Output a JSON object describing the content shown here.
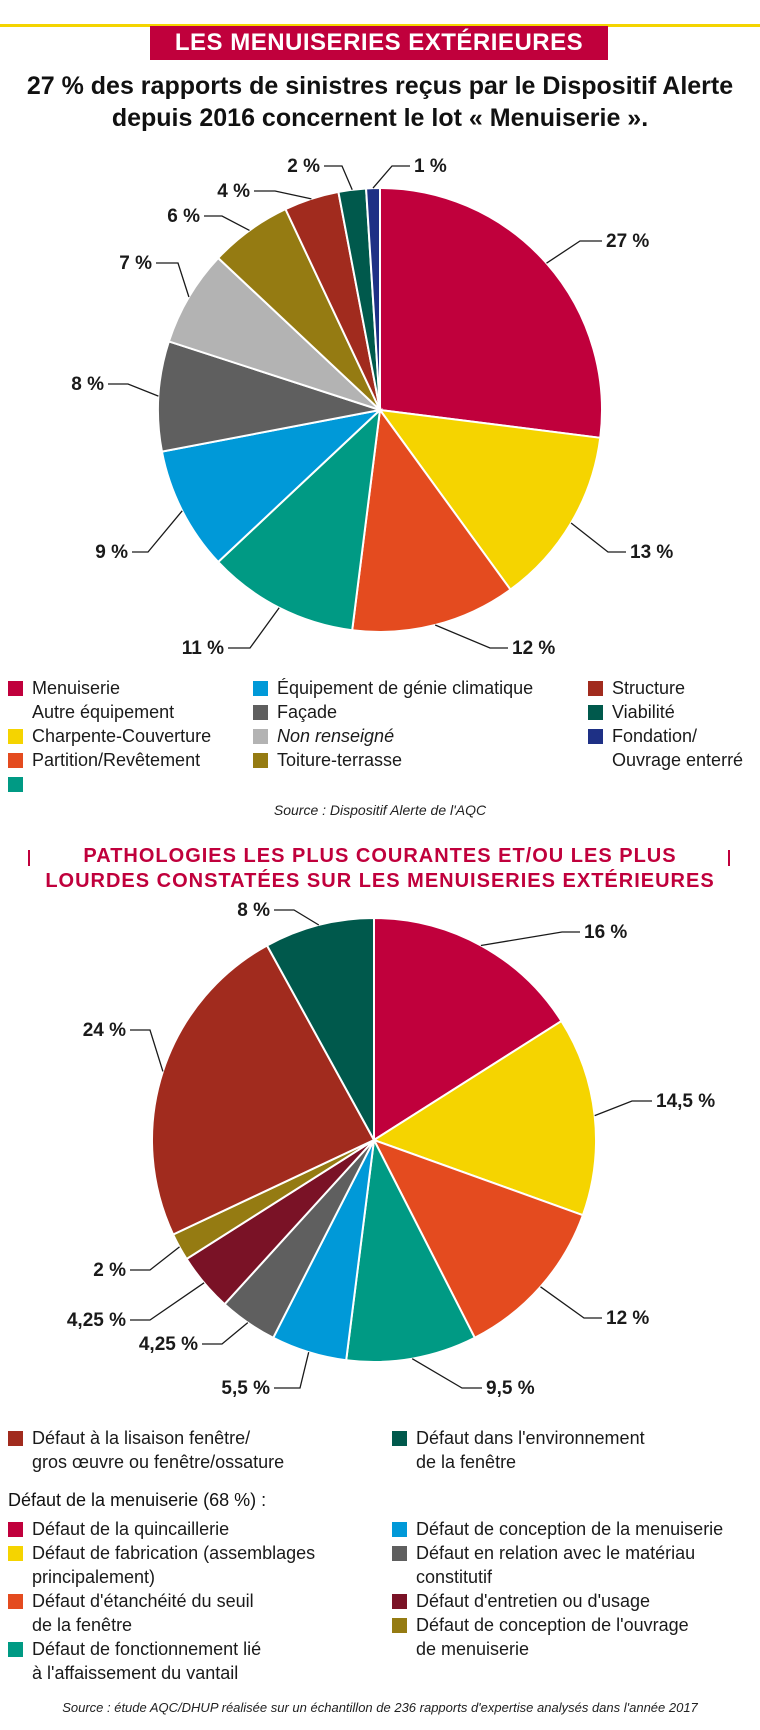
{
  "header": {
    "banner": "LES MENUISERIES EXTÉRIEURES",
    "headline_line1": "27 % des rapports de sinistres reçus par le Dispositif Alerte",
    "headline_line2": "depuis 2016 concernent le lot « Menuiserie »."
  },
  "chart_data": [
    {
      "type": "pie",
      "title": "",
      "slices": [
        {
          "label": "Menuiserie",
          "value": 27,
          "display": "27 %",
          "color": "#c0003c"
        },
        {
          "label": "Charpente-Couverture",
          "value": 13,
          "display": "13 %",
          "color": "#f5d400"
        },
        {
          "label": "Partition/Revêtement",
          "value": 12,
          "display": "12 %",
          "color": "#e44b1f"
        },
        {
          "label": "Autre équipement",
          "value": 11,
          "display": "11 %",
          "color": "#009a84"
        },
        {
          "label": "Équipement de génie climatique",
          "value": 9,
          "display": "9 %",
          "color": "#0099d8"
        },
        {
          "label": "Façade",
          "value": 8,
          "display": "8 %",
          "color": "#5f5f5f"
        },
        {
          "label": "Non renseigné",
          "value": 7,
          "display": "7 %",
          "color": "#b3b3b3"
        },
        {
          "label": "Toiture-terrasse",
          "value": 6,
          "display": "6 %",
          "color": "#957b12"
        },
        {
          "label": "Structure",
          "value": 4,
          "display": "4 %",
          "color": "#a12b1e"
        },
        {
          "label": "Viabilité",
          "value": 2,
          "display": "2 %",
          "color": "#00594c"
        },
        {
          "label": "Fondation/ Ouvrage enterré",
          "value": 1,
          "display": "1 %",
          "color": "#1e3085"
        }
      ],
      "legend_placement": "bottom"
    },
    {
      "type": "pie",
      "title": "PATHOLOGIES LES PLUS COURANTES ET/OU LES PLUS LOURDES CONSTATÉES SUR LES MENUISERIES EXTÉRIEURES",
      "slices": [
        {
          "label": "Défaut de la quincaillerie",
          "value": 16,
          "display": "16 %",
          "color": "#c0003c"
        },
        {
          "label": "Défaut de fabrication (assemblages principalement)",
          "value": 14.5,
          "display": "14,5 %",
          "color": "#f5d400"
        },
        {
          "label": "Défaut d'étanchéité du seuil de la fenêtre",
          "value": 12,
          "display": "12 %",
          "color": "#e44b1f"
        },
        {
          "label": "Défaut de fonctionnement lié à l'affaissement du vantail",
          "value": 9.5,
          "display": "9,5 %",
          "color": "#009a84"
        },
        {
          "label": "Défaut de conception de la menuiserie",
          "value": 5.5,
          "display": "5,5 %",
          "color": "#0099d8"
        },
        {
          "label": "Défaut en relation avec le matériau constitutif",
          "value": 4.25,
          "display": "4,25 %",
          "color": "#5f5f5f"
        },
        {
          "label": "Défaut d'entretien ou d'usage",
          "value": 4.25,
          "display": "4,25 %",
          "color": "#7a1226"
        },
        {
          "label": "Défaut de conception de l'ouvrage de menuiserie",
          "value": 2,
          "display": "2 %",
          "color": "#957b12"
        },
        {
          "label": "Défaut à la lisaison fenêtre/ gros œuvre ou fenêtre/ossature",
          "value": 24,
          "display": "24 %",
          "color": "#a12b1e"
        },
        {
          "label": "Défaut dans l'environnement de la fenêtre",
          "value": 8,
          "display": "8 %",
          "color": "#00594c"
        }
      ],
      "legend_placement": "bottom"
    }
  ],
  "legend1": {
    "col1": [
      "Menuiserie",
      "Autre équipement",
      "Charpente-Couverture",
      "Partition/Revêtement"
    ],
    "col2": [
      "Équipement de génie climatique",
      "Façade",
      "Non renseigné",
      "Toiture-terrasse"
    ],
    "col3": [
      "Structure",
      "Viabilité",
      "Fondation/",
      "Ouvrage enterré"
    ],
    "colors": {
      "menuiserie": "#c0003c",
      "charpente": "#f5d400",
      "partition": "#e44b1f",
      "autre": "#009a84",
      "climatique": "#0099d8",
      "facade": "#5f5f5f",
      "non_renseigne": "#b3b3b3",
      "toiture": "#957b12",
      "structure": "#a12b1e",
      "viabilite": "#00594c",
      "fondation": "#1e3085"
    }
  },
  "source1": "Source : Dispositif Alerte de l'AQC",
  "section2": {
    "title_line1": "PATHOLOGIES LES PLUS COURANTES ET/OU LES PLUS",
    "title_line2": "LOURDES CONSTATÉES SUR LES MENUISERIES EXTÉRIEURES"
  },
  "legend2": {
    "top_left_l1": "Défaut à la lisaison fenêtre/",
    "top_left_l2": "gros œuvre ou fenêtre/ossature",
    "top_right_l1": "Défaut dans l'environnement",
    "top_right_l2": "de la fenêtre",
    "subhead": "Défaut de la menuiserie (68 %) :",
    "left": [
      [
        "Défaut de la quincaillerie"
      ],
      [
        "Défaut de fabrication (assemblages",
        "principalement)"
      ],
      [
        "Défaut d'étanchéité du seuil",
        "de la fenêtre"
      ],
      [
        "Défaut de fonctionnement lié",
        "à l'affaissement du vantail"
      ]
    ],
    "right": [
      [
        "Défaut de conception de la menuiserie"
      ],
      [
        "Défaut en relation avec le matériau",
        "constitutif"
      ],
      [
        "Défaut d'entretien ou d'usage"
      ],
      [
        "Défaut de conception de l'ouvrage",
        "de menuiserie"
      ]
    ]
  },
  "source2": "Source : étude AQC/DHUP réalisée sur un échantillon de 236 rapports d'expertise analysés dans l'année 2017"
}
